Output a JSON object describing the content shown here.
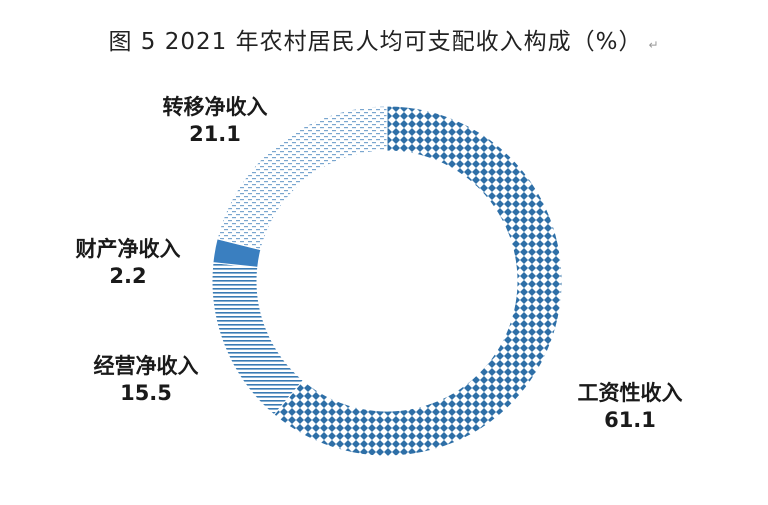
{
  "title": "图 5  2021 年农村居民人均可支配收入构成（%）",
  "title_mark": "↵",
  "chart_data": {
    "type": "pie",
    "variant": "donut",
    "title": "图 5  2021 年农村居民人均可支配收入构成（%）",
    "categories": [
      "工资性收入",
      "转移净收入",
      "财产净收入",
      "经营净收入"
    ],
    "values": [
      61.1,
      21.1,
      2.2,
      15.5
    ],
    "slice_order": [
      "工资性收入",
      "经营净收入",
      "财产净收入",
      "转移净收入"
    ],
    "slice_values": [
      61.1,
      15.5,
      2.2,
      21.1
    ],
    "direction": "clockwise from top",
    "colors": {
      "工资性收入": "#2e6fa7",
      "经营净收入": "#3a7bb4",
      "财产净收入": "#3a7fc0",
      "转移净收入": "#6f9ec8"
    },
    "patterns": {
      "工资性收入": "diamond-checker",
      "经营净收入": "horizontal-lines",
      "财产净收入": "solid",
      "转移净收入": "dashed-light"
    },
    "legend": "none (direct labels)"
  }
}
